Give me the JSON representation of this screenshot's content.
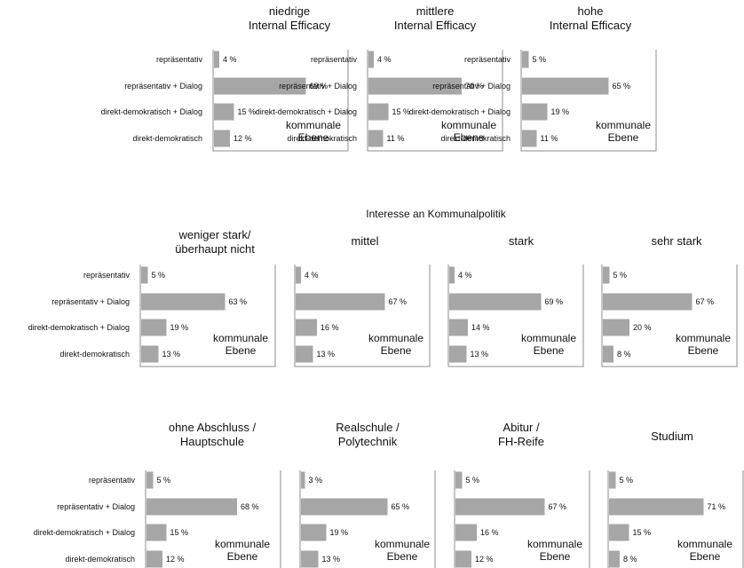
{
  "chart_data": [
    {
      "type": "bar",
      "orientation": "horizontal",
      "group": "",
      "panels": [
        {
          "title": [
            "niedrige",
            "Internal Efficacy"
          ],
          "annotation": [
            "kommunale",
            "Ebene"
          ],
          "categories": [
            "repräsentativ",
            "repräsentativ + Dialog",
            "direkt-demokratisch + Dialog",
            "direkt-demokratisch"
          ],
          "values": [
            4,
            69,
            15,
            12
          ],
          "labels": [
            "4 %",
            "69 %",
            "15 %",
            "12 %"
          ]
        },
        {
          "title": [
            "mittlere",
            "Internal Efficacy"
          ],
          "annotation": [
            "kommunale",
            "Ebene"
          ],
          "categories": [
            "repräsentativ",
            "repräsentativ + Dialog",
            "direkt-demokratisch + Dialog",
            "direkt-demokratisch"
          ],
          "values": [
            4,
            70,
            15,
            11
          ],
          "labels": [
            "4 %",
            "70 %",
            "15 %",
            "11 %"
          ]
        },
        {
          "title": [
            "hohe",
            "Internal Efficacy"
          ],
          "annotation": [
            "kommunale",
            "Ebene"
          ],
          "categories": [
            "repräsentativ",
            "repräsentativ + Dialog",
            "direkt-demokratisch + Dialog",
            "direkt-demokratisch"
          ],
          "values": [
            5,
            65,
            19,
            11
          ],
          "labels": [
            "5 %",
            "65 %",
            "19 %",
            "11 %"
          ]
        }
      ]
    },
    {
      "type": "bar",
      "orientation": "horizontal",
      "group": "Interesse an Kommunalpolitik",
      "panels": [
        {
          "title": [
            "weniger stark/",
            "überhaupt nicht"
          ],
          "annotation": [
            "kommunale",
            "Ebene"
          ],
          "categories": [
            "repräsentativ",
            "repräsentativ + Dialog",
            "direkt-demokratisch + Dialog",
            "direkt-demokratisch"
          ],
          "values": [
            5,
            63,
            19,
            13
          ],
          "labels": [
            "5 %",
            "63 %",
            "19 %",
            "13 %"
          ]
        },
        {
          "title": [
            "mittel"
          ],
          "annotation": [
            "kommunale",
            "Ebene"
          ],
          "categories": [
            "",
            "",
            "",
            ""
          ],
          "values": [
            4,
            67,
            16,
            13
          ],
          "labels": [
            "4 %",
            "67 %",
            "16 %",
            "13 %"
          ]
        },
        {
          "title": [
            "stark"
          ],
          "annotation": [
            "kommunale",
            "Ebene"
          ],
          "categories": [
            "",
            "",
            "",
            ""
          ],
          "values": [
            4,
            69,
            14,
            13
          ],
          "labels": [
            "4 %",
            "69 %",
            "14 %",
            "13 %"
          ]
        },
        {
          "title": [
            "sehr stark"
          ],
          "annotation": [
            "kommunale",
            "Ebene"
          ],
          "categories": [
            "",
            "",
            "",
            ""
          ],
          "values": [
            5,
            67,
            20,
            8
          ],
          "labels": [
            "5 %",
            "67 %",
            "20 %",
            "8 %"
          ]
        }
      ]
    },
    {
      "type": "bar",
      "orientation": "horizontal",
      "group": "",
      "panels": [
        {
          "title": [
            "ohne Abschluss /",
            "Hauptschule"
          ],
          "annotation": [
            "kommunale",
            "Ebene"
          ],
          "categories": [
            "repräsentativ",
            "repräsentativ + Dialog",
            "direkt-demokratisch + Dialog",
            "direkt-demokratisch"
          ],
          "values": [
            5,
            68,
            15,
            12
          ],
          "labels": [
            "5 %",
            "68 %",
            "15 %",
            "12 %"
          ]
        },
        {
          "title": [
            "Realschule /",
            "Polytechnik"
          ],
          "annotation": [
            "kommunale",
            "Ebene"
          ],
          "categories": [
            "",
            "",
            "",
            ""
          ],
          "values": [
            3,
            65,
            19,
            13
          ],
          "labels": [
            "3 %",
            "65 %",
            "19 %",
            "13 %"
          ]
        },
        {
          "title": [
            "Abitur /",
            "FH-Reife"
          ],
          "annotation": [
            "kommunale",
            "Ebene"
          ],
          "categories": [
            "",
            "",
            "",
            ""
          ],
          "values": [
            5,
            67,
            16,
            12
          ],
          "labels": [
            "5 %",
            "67 %",
            "16 %",
            "12 %"
          ]
        },
        {
          "title": [
            "Studium"
          ],
          "annotation": [
            "kommunale",
            "Ebene"
          ],
          "categories": [
            "",
            "",
            "",
            ""
          ],
          "values": [
            5,
            71,
            15,
            8
          ],
          "labels": [
            "5 %",
            "71 %",
            "15 %",
            "8 %"
          ]
        }
      ]
    }
  ]
}
